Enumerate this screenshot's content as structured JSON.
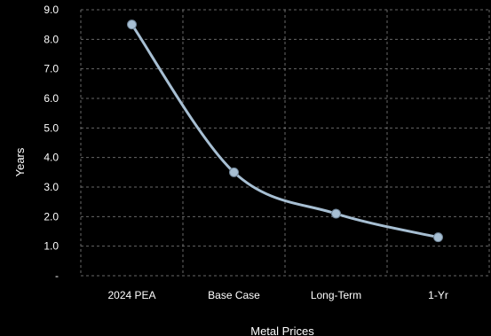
{
  "chart_data": {
    "type": "line",
    "categories": [
      "2024 PEA",
      "Base Case",
      "Long-Term",
      "1-Yr"
    ],
    "series": [
      {
        "values": [
          8.5,
          3.5,
          2.1,
          1.3
        ]
      }
    ],
    "xlabel": "Metal Prices",
    "ylabel": "Years",
    "ylim": [
      0,
      9
    ],
    "y_ticks": [
      {
        "value": 0,
        "label": "-"
      },
      {
        "value": 1,
        "label": "1.0"
      },
      {
        "value": 2,
        "label": "2.0"
      },
      {
        "value": 3,
        "label": "3.0"
      },
      {
        "value": 4,
        "label": "4.0"
      },
      {
        "value": 5,
        "label": "5.0"
      },
      {
        "value": 6,
        "label": "6.0"
      },
      {
        "value": 7,
        "label": "7.0"
      },
      {
        "value": 8,
        "label": "8.0"
      },
      {
        "value": 9,
        "label": "9.0"
      }
    ],
    "grid": true,
    "smooth": true,
    "colors": {
      "background": "#000000",
      "line": "#a7bfd3",
      "marker": "#a7bfd3",
      "text": "#ffffff",
      "grid": "#8a8a8a"
    }
  }
}
